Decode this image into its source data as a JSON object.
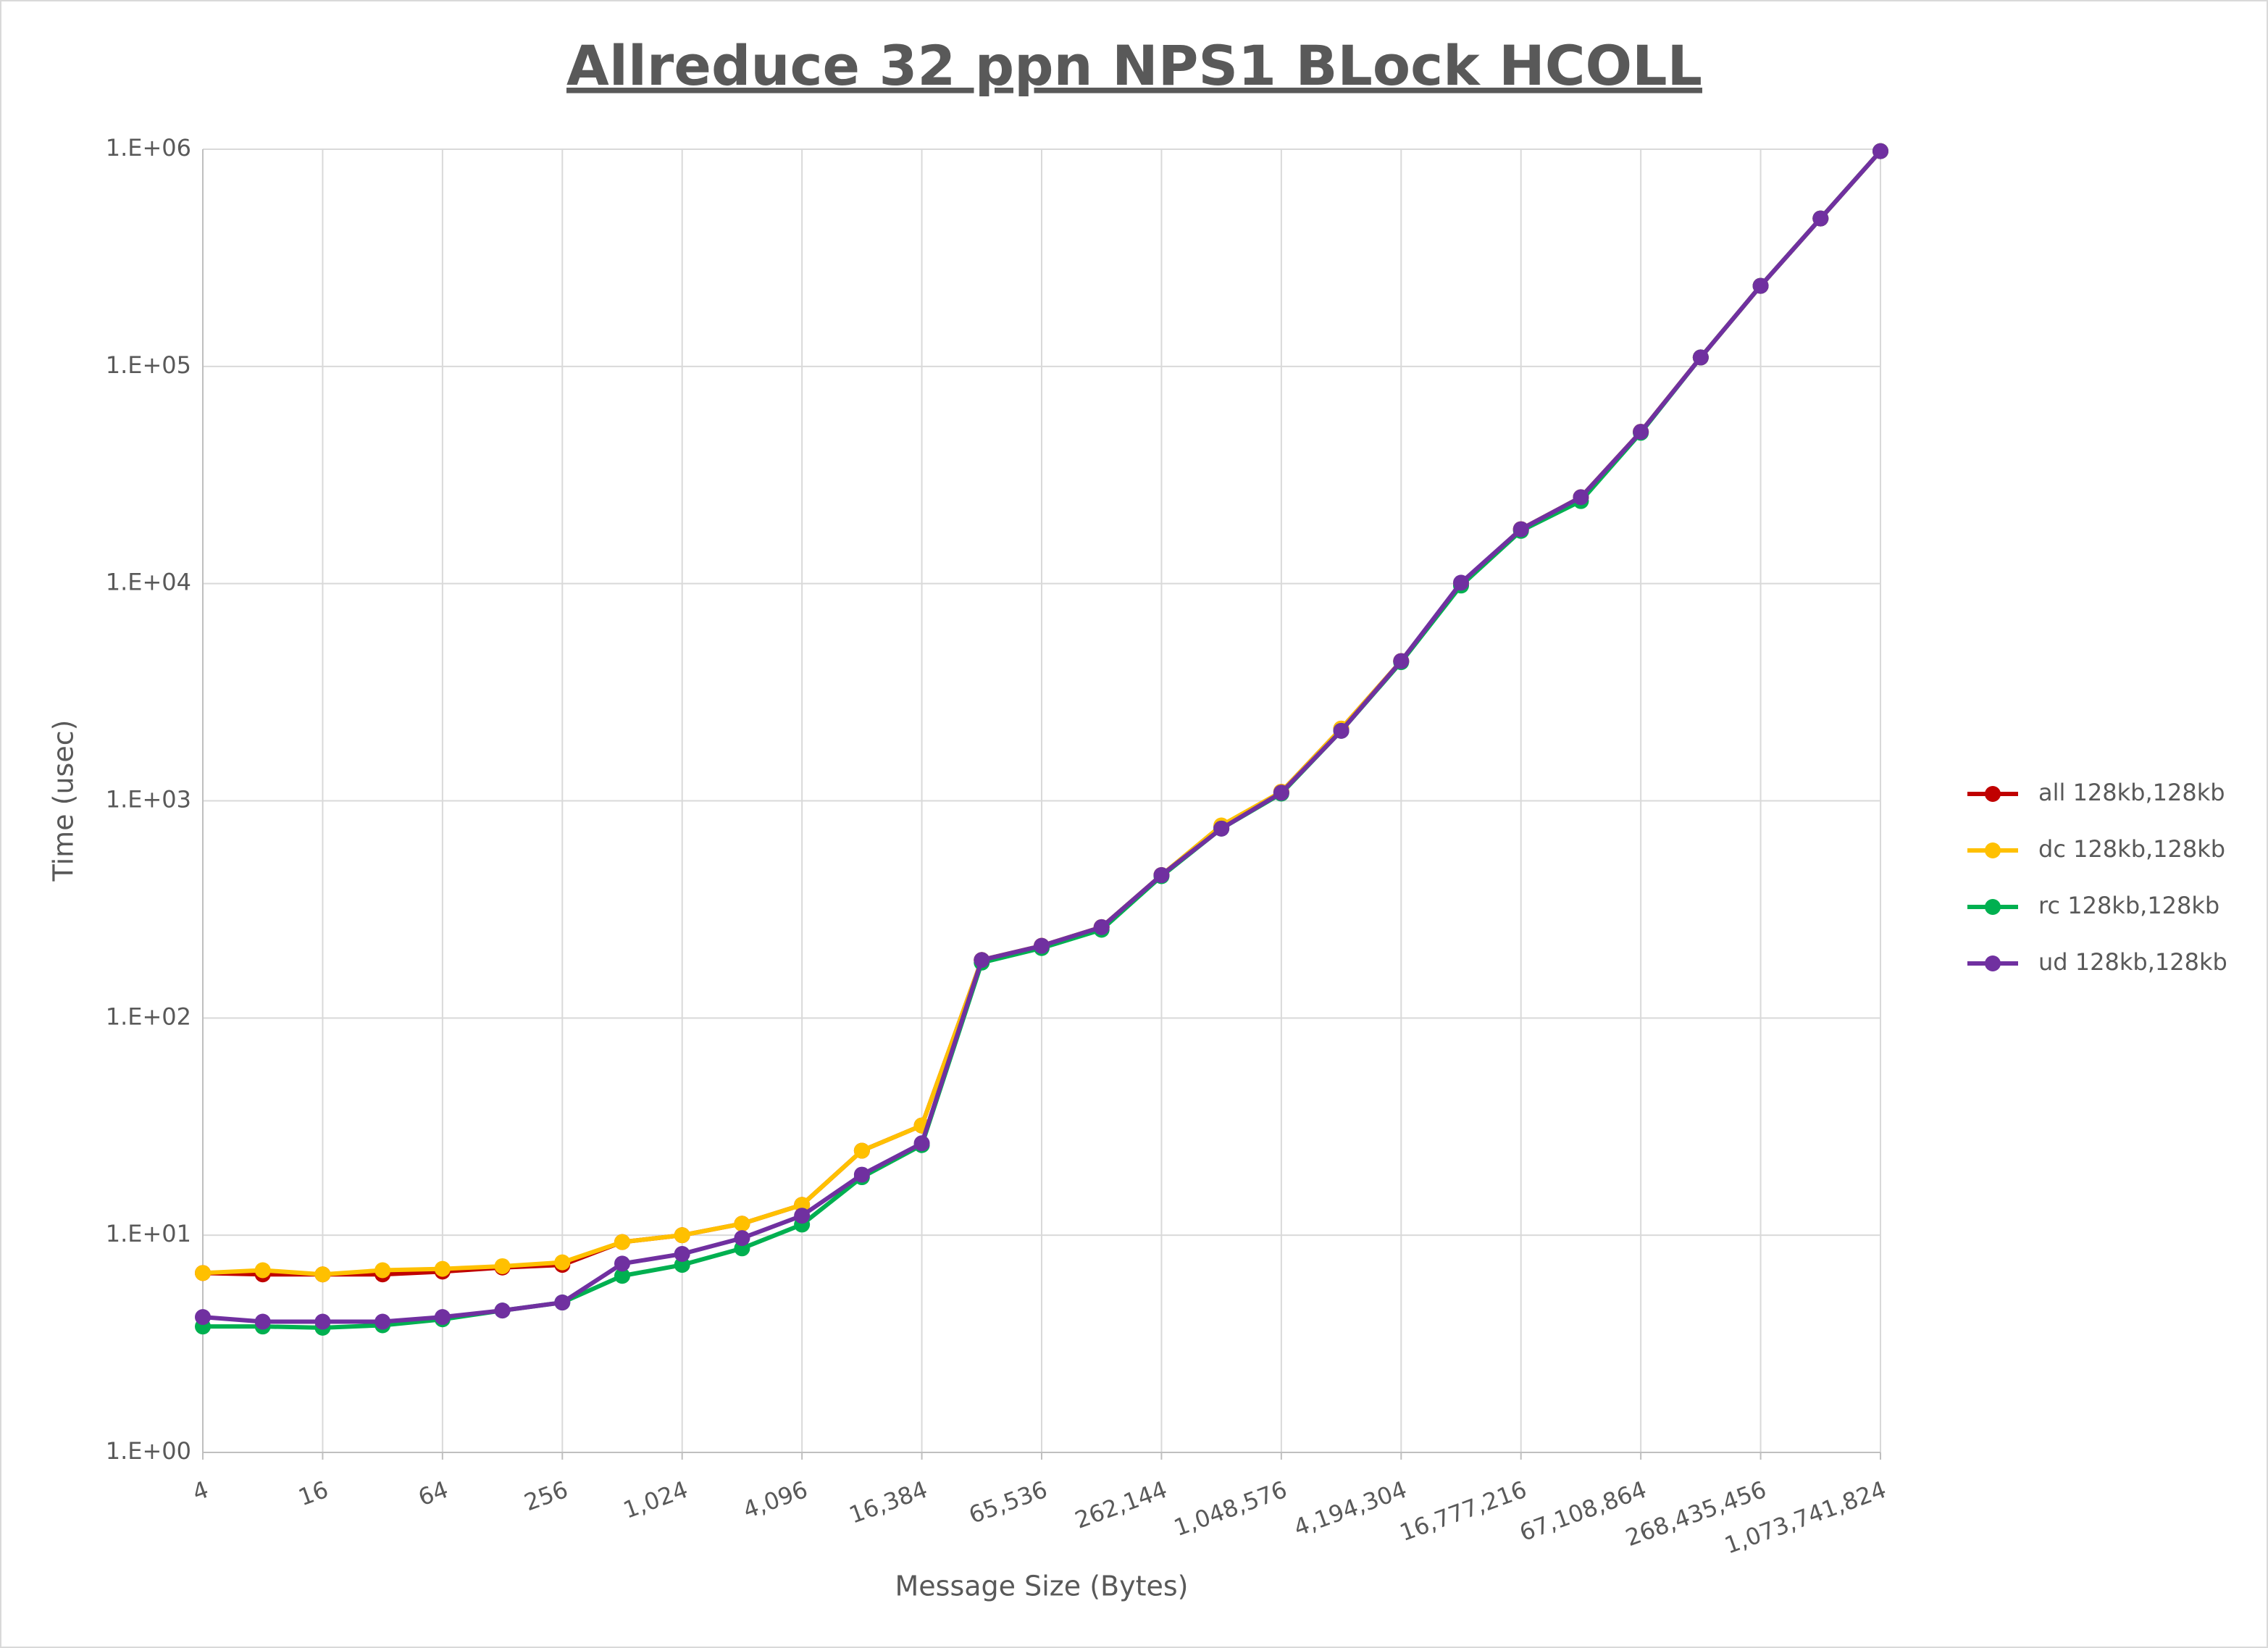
{
  "chart_data": {
    "type": "line",
    "title": "Allreduce 32 ppn NPS1 BLock HCOLL",
    "x_label": "Message Size (Bytes)",
    "y_label": "Time (usec)",
    "x": [
      4,
      8,
      16,
      32,
      64,
      128,
      256,
      512,
      1024,
      2048,
      4096,
      8192,
      16384,
      32768,
      65536,
      131072,
      262144,
      524288,
      1048576,
      2097152,
      4194304,
      8388608,
      16777216,
      33554432,
      67108864,
      134217728,
      268435456,
      536870912,
      1073741824
    ],
    "series": [
      {
        "name": "all 128kb,128kb",
        "color": "#c00000",
        "values": [
          6.7,
          6.6,
          6.6,
          6.6,
          6.8,
          7.1,
          7.3,
          9.3,
          10,
          11.3,
          13.8,
          24.5,
          32,
          185,
          215,
          262,
          455,
          760,
          1100,
          2150,
          4400,
          10000,
          17800,
          25000,
          50000,
          110000,
          235000,
          480000,
          980000
        ]
      },
      {
        "name": "dc 128kb,128kb",
        "color": "#ffc000",
        "values": [
          6.7,
          6.9,
          6.6,
          6.9,
          7.0,
          7.2,
          7.5,
          9.3,
          10,
          11.3,
          13.8,
          24.5,
          32,
          185,
          215,
          262,
          455,
          770,
          1100,
          2150,
          4400,
          10000,
          17800,
          25000,
          50000,
          110000,
          235000,
          480000,
          980000
        ]
      },
      {
        "name": "rc 128kb,128kb",
        "color": "#00b050",
        "values": [
          3.8,
          3.8,
          3.75,
          3.85,
          4.1,
          4.5,
          4.9,
          6.5,
          7.3,
          8.7,
          11.2,
          18.5,
          26,
          180,
          210,
          255,
          450,
          745,
          1080,
          2100,
          4350,
          9800,
          17500,
          24000,
          49500,
          110000,
          235000,
          480000,
          980000
        ]
      },
      {
        "name": "ud 128kb,128kb",
        "color": "#7030a0",
        "values": [
          4.2,
          4.0,
          4.0,
          4.0,
          4.2,
          4.5,
          4.9,
          7.4,
          8.2,
          9.7,
          12.3,
          19,
          26.5,
          185,
          215,
          262,
          455,
          745,
          1090,
          2100,
          4400,
          10100,
          17800,
          25000,
          50000,
          110000,
          235000,
          480000,
          980000
        ]
      }
    ],
    "xscale": "log2",
    "yscale": "log",
    "xlim": [
      4,
      1073741824
    ],
    "ylim": [
      1,
      1000000
    ],
    "xticks": [
      4,
      16,
      64,
      256,
      {
        "value": 1024,
        "label": "1,024"
      },
      {
        "value": 4096,
        "label": "4,096"
      },
      {
        "value": 16384,
        "label": "16,384"
      },
      {
        "value": 65536,
        "label": "65,536"
      },
      {
        "value": 262144,
        "label": "262,144"
      },
      {
        "value": 1048576,
        "label": "1,048,576"
      },
      {
        "value": 4194304,
        "label": "4,194,304"
      },
      {
        "value": 16777216,
        "label": "16,777,216"
      },
      {
        "value": 67108864,
        "label": "67,108,864"
      },
      {
        "value": 268435456,
        "label": "268,435,456"
      },
      {
        "value": 1073741824,
        "label": "1,073,741,824"
      }
    ],
    "yticks": [
      {
        "value": 1,
        "label": "1.E+00"
      },
      {
        "value": 10,
        "label": "1.E+01"
      },
      {
        "value": 100,
        "label": "1.E+02"
      },
      {
        "value": 1000,
        "label": "1.E+03"
      },
      {
        "value": 10000,
        "label": "1.E+04"
      },
      {
        "value": 100000,
        "label": "1.E+05"
      },
      {
        "value": 1000000,
        "label": "1.E+06"
      }
    ],
    "grid": true,
    "legend": "right"
  }
}
